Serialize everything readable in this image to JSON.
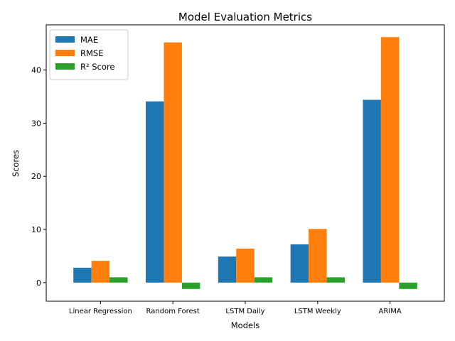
{
  "chart_data": {
    "type": "bar",
    "title": "Model Evaluation Metrics",
    "xlabel": "Models",
    "ylabel": "Scores",
    "categories": [
      "Linear Regression",
      "Random Forest",
      "LSTM Daily",
      "LSTM Weekly",
      "ARIMA"
    ],
    "series": [
      {
        "name": "MAE",
        "color": "#1f77b4",
        "values": [
          2.8,
          34.1,
          4.9,
          7.2,
          34.4
        ]
      },
      {
        "name": "RMSE",
        "color": "#ff7f0e",
        "values": [
          4.1,
          45.2,
          6.4,
          10.1,
          46.2
        ]
      },
      {
        "name": "R² Score",
        "color": "#2ca02c",
        "values": [
          1.0,
          -1.2,
          1.0,
          1.0,
          -1.2
        ]
      }
    ],
    "ylim": [
      -3.5,
      48.5
    ],
    "yticks": [
      0,
      10,
      20,
      30,
      40
    ],
    "legend_position": "top-left",
    "grid": false
  }
}
